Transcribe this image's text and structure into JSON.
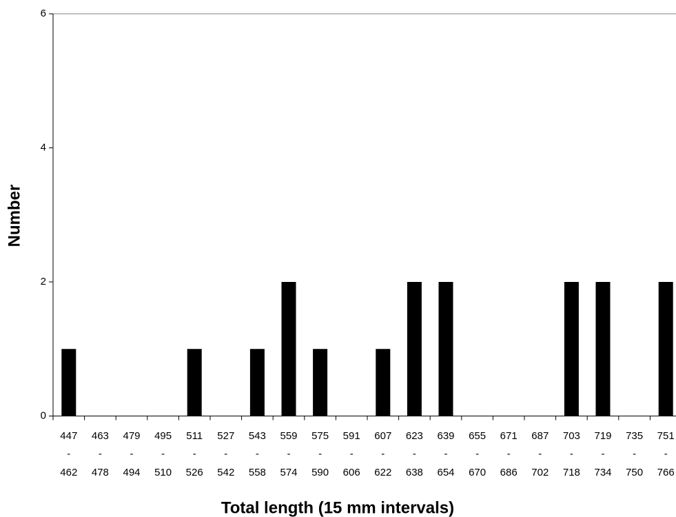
{
  "chart_data": {
    "type": "bar",
    "x_label": "Total length (15 mm intervals)",
    "y_label": "Number",
    "categories": [
      [
        "447",
        "-",
        "462"
      ],
      [
        "463",
        "-",
        "478"
      ],
      [
        "479",
        "-",
        "494"
      ],
      [
        "495",
        "-",
        "510"
      ],
      [
        "511",
        "-",
        "526"
      ],
      [
        "527",
        "-",
        "542"
      ],
      [
        "543",
        "-",
        "558"
      ],
      [
        "559",
        "-",
        "574"
      ],
      [
        "575",
        "-",
        "590"
      ],
      [
        "591",
        "-",
        "606"
      ],
      [
        "607",
        "-",
        "622"
      ],
      [
        "623",
        "-",
        "638"
      ],
      [
        "639",
        "-",
        "654"
      ],
      [
        "655",
        "-",
        "670"
      ],
      [
        "671",
        "-",
        "686"
      ],
      [
        "687",
        "-",
        "702"
      ],
      [
        "703",
        "-",
        "718"
      ],
      [
        "719",
        "-",
        "734"
      ],
      [
        "735",
        "-",
        "750"
      ],
      [
        "751",
        "-",
        "766"
      ]
    ],
    "values": [
      1,
      0,
      0,
      0,
      1,
      0,
      1,
      2,
      1,
      0,
      1,
      2,
      2,
      0,
      0,
      0,
      2,
      2,
      0,
      2
    ],
    "color": "#000000",
    "ylim": [
      0,
      6
    ],
    "yticks": [
      0,
      2,
      4,
      6
    ],
    "grid": false
  }
}
